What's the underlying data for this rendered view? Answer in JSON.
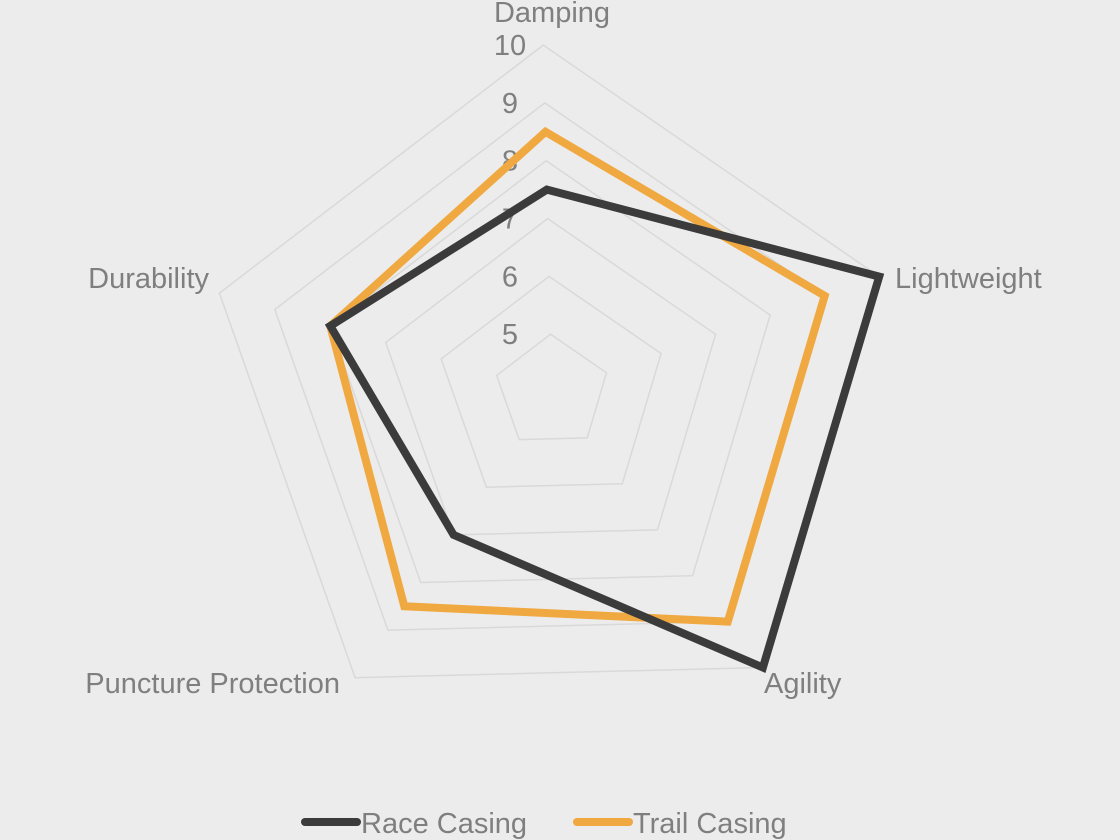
{
  "chart_data": {
    "type": "radar",
    "axes": [
      "Damping",
      "Lightweight",
      "Agility",
      "Puncture Protection",
      "Durability"
    ],
    "rlim": [
      4,
      10
    ],
    "ticks": [
      5,
      6,
      7,
      8,
      9,
      10
    ],
    "grid": true,
    "legend_position": "bottom",
    "series": [
      {
        "name": "Race Casing",
        "color": "#3b3b3b",
        "values": [
          7.5,
          10,
          10,
          7,
          8
        ]
      },
      {
        "name": "Trail Casing",
        "color": "#f0a840",
        "values": [
          8.5,
          9,
          9,
          8.5,
          8
        ]
      }
    ]
  }
}
